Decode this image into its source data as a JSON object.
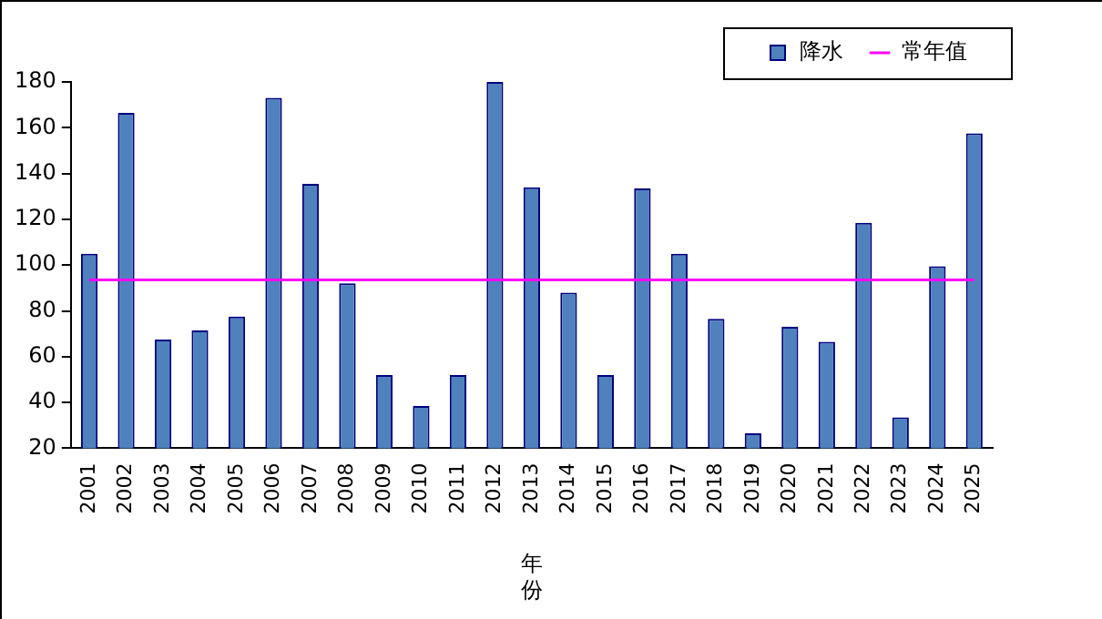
{
  "chart_data": {
    "type": "bar",
    "xlabel": "年份",
    "categories": [
      "2001",
      "2002",
      "2003",
      "2004",
      "2005",
      "2006",
      "2007",
      "2008",
      "2009",
      "2010",
      "2011",
      "2012",
      "2013",
      "2014",
      "2015",
      "2016",
      "2017",
      "2018",
      "2019",
      "2020",
      "2021",
      "2022",
      "2023",
      "2024",
      "2025"
    ],
    "series": [
      {
        "name": "降水",
        "color": "#4f81bd",
        "values": [
          105,
          166.5,
          67.5,
          71.5,
          77.5,
          173,
          135.5,
          92,
          52,
          38.5,
          52,
          180,
          134,
          88,
          52,
          133.5,
          105,
          76.5,
          26.5,
          73,
          66.5,
          118.5,
          33.5,
          99.5,
          157.5
        ]
      },
      {
        "name": "常年值",
        "type": "line",
        "color": "#ff00ff",
        "values": [
          93.5,
          93.5,
          93.5,
          93.5,
          93.5,
          93.5,
          93.5,
          93.5,
          93.5,
          93.5,
          93.5,
          93.5,
          93.5,
          93.5,
          93.5,
          93.5,
          93.5,
          93.5,
          93.5,
          93.5,
          93.5,
          93.5,
          93.5,
          93.5,
          93.5
        ]
      }
    ],
    "ylim": [
      20,
      180
    ],
    "yticks": [
      20,
      40,
      60,
      80,
      100,
      120,
      140,
      160,
      180
    ],
    "grid": false,
    "legend": "top right"
  }
}
